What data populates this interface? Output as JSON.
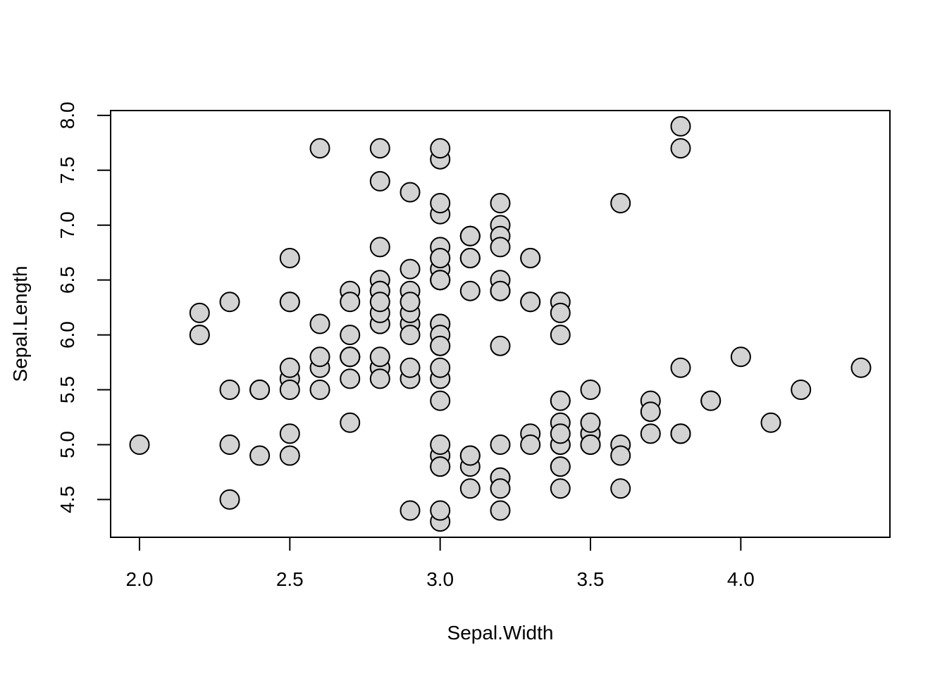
{
  "chart_data": {
    "type": "scatter",
    "title": "",
    "xlabel": "Sepal.Width",
    "ylabel": "Sepal.Length",
    "x_tick_labels": [
      "2.0",
      "2.5",
      "3.0",
      "3.5",
      "4.0"
    ],
    "y_tick_labels": [
      "4.5",
      "5.0",
      "5.5",
      "6.0",
      "6.5",
      "7.0",
      "7.5",
      "8.0"
    ],
    "xlim": [
      1.904,
      4.496
    ],
    "ylim": [
      4.156,
      8.044
    ],
    "grid": false,
    "legend": "none",
    "marker": {
      "shape": "circle",
      "fill": "#d3d3d3",
      "stroke": "#000000",
      "radius_px": 13.5,
      "stroke_width_px": 2
    },
    "frame_color": "#000000",
    "background_color": "#ffffff",
    "x": [
      3.5,
      3.0,
      3.2,
      3.1,
      3.6,
      3.9,
      3.4,
      3.4,
      2.9,
      3.1,
      3.7,
      3.4,
      3.0,
      3.0,
      4.0,
      4.4,
      3.9,
      3.5,
      3.8,
      3.8,
      3.4,
      3.7,
      3.6,
      3.3,
      3.4,
      3.0,
      3.4,
      3.5,
      3.4,
      3.2,
      3.1,
      3.4,
      4.1,
      4.2,
      3.1,
      3.2,
      3.5,
      3.6,
      3.0,
      3.4,
      3.5,
      2.3,
      3.2,
      3.5,
      3.8,
      3.0,
      3.8,
      3.2,
      3.7,
      3.3,
      3.2,
      3.2,
      3.1,
      2.3,
      2.8,
      2.8,
      3.3,
      2.4,
      2.9,
      2.7,
      2.0,
      3.0,
      2.2,
      2.9,
      2.9,
      3.1,
      3.0,
      2.7,
      2.2,
      2.5,
      3.2,
      2.8,
      2.5,
      2.8,
      2.9,
      3.0,
      2.8,
      3.0,
      2.9,
      2.6,
      2.4,
      2.4,
      2.7,
      2.7,
      3.0,
      3.4,
      3.1,
      2.3,
      3.0,
      2.5,
      2.6,
      3.0,
      2.6,
      2.3,
      2.7,
      3.0,
      2.9,
      2.9,
      2.5,
      2.8,
      3.3,
      2.7,
      3.0,
      2.9,
      3.0,
      3.0,
      2.5,
      2.9,
      2.5,
      3.6,
      3.2,
      2.7,
      3.0,
      2.5,
      2.8,
      3.2,
      3.0,
      3.8,
      2.6,
      2.2,
      3.2,
      2.8,
      2.8,
      2.7,
      3.3,
      3.2,
      2.8,
      3.0,
      2.8,
      3.0,
      2.8,
      3.8,
      2.8,
      2.8,
      2.6,
      3.0,
      3.4,
      3.1,
      3.0,
      3.1,
      3.1,
      3.1,
      2.7,
      3.2,
      3.3,
      3.0,
      2.5,
      3.0,
      3.4,
      3.0
    ],
    "y": [
      5.1,
      4.9,
      4.7,
      4.6,
      5.0,
      5.4,
      4.6,
      5.0,
      4.4,
      4.9,
      5.4,
      4.8,
      4.8,
      4.3,
      5.8,
      5.7,
      5.4,
      5.1,
      5.7,
      5.1,
      5.4,
      5.1,
      4.6,
      5.1,
      4.8,
      5.0,
      5.0,
      5.2,
      5.2,
      4.7,
      4.8,
      5.4,
      5.2,
      5.5,
      4.9,
      5.0,
      5.5,
      4.9,
      4.4,
      5.1,
      5.0,
      4.5,
      4.4,
      5.0,
      5.1,
      4.8,
      5.1,
      4.6,
      5.3,
      5.0,
      7.0,
      6.4,
      6.9,
      5.5,
      6.5,
      5.7,
      6.3,
      4.9,
      6.6,
      5.2,
      5.0,
      5.9,
      6.0,
      6.1,
      5.6,
      6.7,
      5.6,
      5.8,
      6.2,
      5.6,
      5.9,
      6.1,
      6.3,
      6.1,
      6.4,
      6.6,
      6.8,
      6.7,
      6.0,
      5.7,
      5.5,
      5.5,
      5.8,
      6.0,
      5.4,
      6.0,
      6.7,
      6.3,
      5.6,
      5.5,
      5.5,
      6.1,
      5.8,
      5.0,
      5.6,
      5.7,
      5.7,
      6.2,
      5.1,
      5.7,
      6.3,
      5.8,
      7.1,
      6.3,
      6.5,
      7.6,
      4.9,
      7.3,
      6.7,
      7.2,
      6.5,
      6.4,
      6.8,
      5.7,
      5.8,
      6.4,
      6.5,
      7.7,
      7.7,
      6.0,
      6.9,
      5.6,
      7.7,
      6.3,
      6.7,
      7.2,
      6.2,
      6.1,
      6.4,
      7.2,
      7.4,
      7.9,
      6.4,
      6.3,
      6.1,
      7.7,
      6.3,
      6.4,
      6.0,
      6.9,
      6.7,
      6.9,
      5.8,
      6.8,
      6.7,
      6.7,
      6.3,
      6.5,
      6.2,
      5.9
    ]
  }
}
